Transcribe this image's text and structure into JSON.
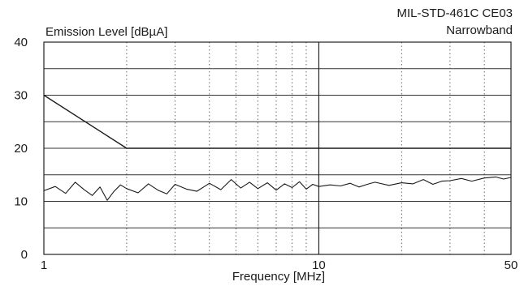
{
  "chart_data": {
    "type": "line",
    "title": "MIL-STD-461C CE03",
    "subtitle": "Narrowband",
    "ylabel": "Emission Level [dBµA]",
    "xlabel": "Frequency [MHz]",
    "xscale": "log",
    "xlim": [
      1,
      50
    ],
    "ylim": [
      0,
      40
    ],
    "x_tick_labels": [
      {
        "value": 1,
        "label": "1"
      },
      {
        "value": 10,
        "label": "10"
      },
      {
        "value": 50,
        "label": "50"
      }
    ],
    "y_tick_labels": [
      {
        "value": 0,
        "label": "0"
      },
      {
        "value": 10,
        "label": "10"
      },
      {
        "value": 20,
        "label": "20"
      },
      {
        "value": 30,
        "label": "30"
      },
      {
        "value": 40,
        "label": "40"
      }
    ],
    "grid": true,
    "series": [
      {
        "role": "limit",
        "x": [
          1,
          2,
          50
        ],
        "y": [
          30,
          20,
          20
        ]
      },
      {
        "role": "measured",
        "x": [
          1,
          1.1,
          1.2,
          1.3,
          1.4,
          1.5,
          1.6,
          1.7,
          1.8,
          1.9,
          2,
          2.2,
          2.4,
          2.6,
          2.8,
          3,
          3.3,
          3.6,
          4,
          4.4,
          4.8,
          5.2,
          5.6,
          6,
          6.5,
          7,
          7.5,
          8,
          8.5,
          9,
          9.5,
          10,
          11,
          12,
          13,
          14,
          15,
          16,
          18,
          20,
          22,
          24,
          26,
          28,
          30,
          33,
          36,
          40,
          44,
          47,
          50
        ],
        "y": [
          12,
          12.8,
          11.5,
          13.6,
          12.2,
          11.1,
          12.7,
          10.2,
          11.9,
          13.1,
          12.4,
          11.6,
          13.3,
          12.1,
          11.4,
          13.2,
          12.3,
          11.9,
          13.4,
          12.2,
          14.1,
          12.5,
          13.6,
          12.4,
          13.5,
          12.1,
          13.3,
          12.6,
          13.7,
          12.3,
          13.2,
          12.8,
          13.1,
          12.9,
          13.4,
          12.7,
          13.2,
          13.6,
          13.0,
          13.5,
          13.3,
          14.1,
          13.2,
          13.8,
          13.9,
          14.3,
          13.8,
          14.4,
          14.6,
          14.2,
          14.5
        ]
      }
    ]
  }
}
